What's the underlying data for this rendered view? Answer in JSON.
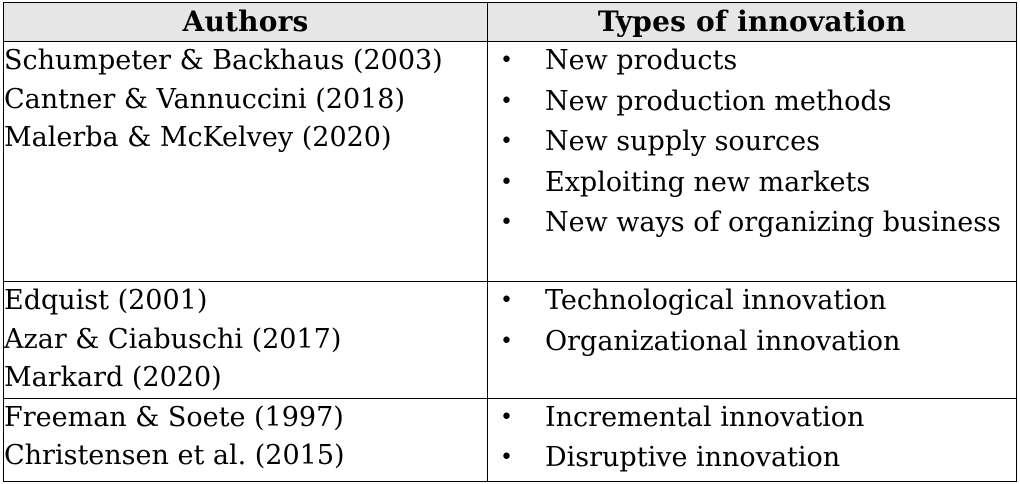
{
  "table": {
    "headers": {
      "authors": "Authors",
      "types": "Types of innovation"
    },
    "rows": [
      {
        "authors": [
          "Schumpeter & Backhaus (2003)",
          "Cantner & Vannuccini (2018)",
          "Malerba & McKelvey (2020)"
        ],
        "types": [
          "New products",
          "New production methods",
          "New supply sources",
          "Exploiting new markets",
          "New ways of organizing business"
        ]
      },
      {
        "authors": [
          "Edquist (2001)",
          "Azar & Ciabuschi (2017)",
          "Markard (2020)"
        ],
        "types": [
          "Technological innovation",
          "Organizational innovation"
        ]
      },
      {
        "authors": [
          "Freeman & Soete (1997)",
          "Christensen et al. (2015)"
        ],
        "types": [
          "Incremental innovation",
          "Disruptive innovation"
        ]
      }
    ],
    "bullet_symbol": "•",
    "colors": {
      "header_background": "#e6e6e6",
      "border": "#000000",
      "text": "#000000"
    }
  }
}
